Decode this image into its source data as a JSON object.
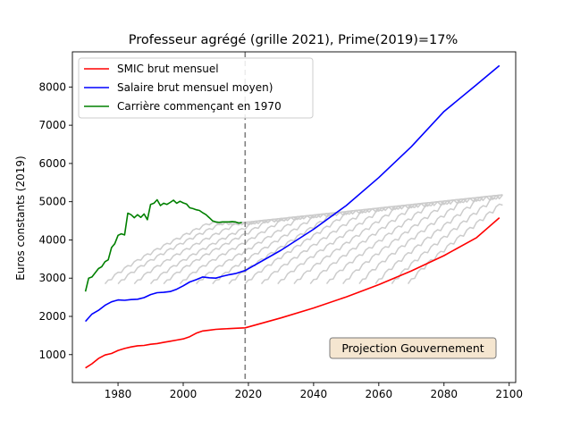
{
  "chart_data": {
    "type": "line",
    "title": "Professeur agrégé (grille 2021), Prime(2019)=17%",
    "xlabel": "",
    "ylabel": "Euros constants (2019)",
    "xlim": [
      1966,
      2102
    ],
    "ylim": [
      270,
      8920
    ],
    "xticks": [
      1980,
      2000,
      2020,
      2040,
      2060,
      2080,
      2100
    ],
    "yticks": [
      1000,
      2000,
      3000,
      4000,
      5000,
      6000,
      7000,
      8000
    ],
    "grid": false,
    "legend_position": "upper-left",
    "vline": {
      "x": 2019,
      "style": "dashed",
      "color": "#808080"
    },
    "annotation": {
      "text": "Projection Gouvernement",
      "x": 2066,
      "y": 1070
    },
    "series": [
      {
        "name": "SMIC brut mensuel",
        "color": "#ff0000",
        "x": [
          1970,
          1972,
          1974,
          1976,
          1978,
          1980,
          1982,
          1984,
          1986,
          1988,
          1990,
          1992,
          1994,
          1996,
          1998,
          2000,
          2002,
          2004,
          2006,
          2008,
          2010,
          2012,
          2014,
          2016,
          2019,
          2030,
          2040,
          2050,
          2060,
          2070,
          2080,
          2090,
          2097
        ],
        "y": [
          650,
          760,
          900,
          990,
          1030,
          1110,
          1160,
          1200,
          1230,
          1240,
          1270,
          1290,
          1320,
          1350,
          1380,
          1410,
          1470,
          1560,
          1620,
          1640,
          1660,
          1670,
          1680,
          1690,
          1700,
          1960,
          2220,
          2510,
          2830,
          3190,
          3590,
          4060,
          4580
        ]
      },
      {
        "name": "Salaire brut mensuel moyen)",
        "color": "#0000ff",
        "x": [
          1970,
          1972,
          1974,
          1976,
          1978,
          1980,
          1982,
          1984,
          1986,
          1988,
          1990,
          1992,
          1994,
          1996,
          1998,
          2000,
          2002,
          2004,
          2006,
          2008,
          2010,
          2012,
          2014,
          2016,
          2019,
          2030,
          2040,
          2050,
          2060,
          2070,
          2080,
          2090,
          2097
        ],
        "y": [
          1870,
          2060,
          2160,
          2290,
          2380,
          2430,
          2420,
          2440,
          2450,
          2490,
          2570,
          2620,
          2630,
          2650,
          2710,
          2800,
          2900,
          2960,
          3030,
          3010,
          3000,
          3050,
          3090,
          3120,
          3200,
          3730,
          4280,
          4900,
          5630,
          6440,
          7360,
          8060,
          8560
        ]
      },
      {
        "name": "Carrière commençant en 1970",
        "color": "#008000",
        "x": [
          1970,
          1971,
          1972,
          1974,
          1975,
          1976,
          1977,
          1978,
          1979,
          1980,
          1981,
          1982,
          1983,
          1984,
          1985,
          1986,
          1987,
          1988,
          1989,
          1990,
          1991,
          1992,
          1993,
          1994,
          1995,
          1996,
          1997,
          1998,
          1999,
          2000,
          2001,
          2002,
          2003,
          2004,
          2005,
          2006,
          2007,
          2008,
          2009,
          2010,
          2011,
          2012,
          2013,
          2014,
          2015,
          2016,
          2017,
          2018
        ],
        "y": [
          2650,
          3000,
          3030,
          3250,
          3300,
          3430,
          3480,
          3800,
          3900,
          4120,
          4160,
          4130,
          4700,
          4660,
          4580,
          4660,
          4590,
          4680,
          4530,
          4930,
          4960,
          5050,
          4900,
          4960,
          4930,
          4980,
          5040,
          4960,
          5010,
          4970,
          4940,
          4840,
          4820,
          4790,
          4770,
          4710,
          4660,
          4580,
          4500,
          4470,
          4460,
          4470,
          4470,
          4470,
          4480,
          4470,
          4440,
          4460
        ]
      }
    ],
    "background_careers": {
      "color": "#cccccc",
      "description_start_years": [
        1976,
        1980,
        1985,
        1990,
        1994,
        1999,
        2004,
        2009,
        2014,
        2019,
        2024,
        2029,
        2034,
        2039,
        2044,
        2049,
        2054,
        2059,
        2064,
        2069
      ],
      "start_level_2019": 2850,
      "plateau_2019": 4460,
      "plateau_2098": 5180,
      "career_length_years": 43
    }
  }
}
